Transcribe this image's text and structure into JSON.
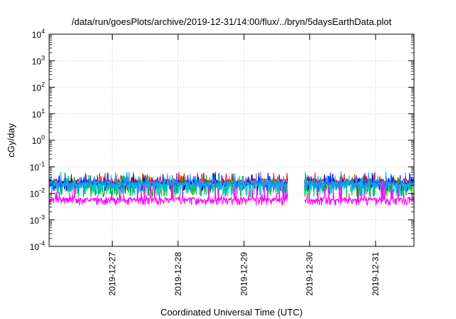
{
  "chart_data": {
    "type": "line",
    "title": "/data/run/goesPlots/archive/2019-12-31/14:00/flux/../bryn/5daysEarthData.plot",
    "xlabel": "Coordinated Universal Time (UTC)",
    "ylabel": "cGy/day",
    "y_scale": "log",
    "ylim": [
      0.0001,
      10000
    ],
    "y_ticks": [
      {
        "value": 0.0001,
        "base": "10",
        "exp": "-4"
      },
      {
        "value": 0.001,
        "base": "10",
        "exp": "-3"
      },
      {
        "value": 0.01,
        "base": "10",
        "exp": "-2"
      },
      {
        "value": 0.1,
        "base": "10",
        "exp": "-1"
      },
      {
        "value": 1,
        "base": "10",
        "exp": "0"
      },
      {
        "value": 10,
        "base": "10",
        "exp": "1"
      },
      {
        "value": 100,
        "base": "10",
        "exp": "2"
      },
      {
        "value": 1000,
        "base": "10",
        "exp": "3"
      },
      {
        "value": 10000,
        "base": "10",
        "exp": "4"
      }
    ],
    "xlim": [
      "2019-12-26T01:00",
      "2019-12-31T14:00"
    ],
    "x_ticks": [
      {
        "value": "2019-12-27T00:00",
        "label": "2019-12-27"
      },
      {
        "value": "2019-12-28T00:00",
        "label": "2019-12-28"
      },
      {
        "value": "2019-12-29T00:00",
        "label": "2019-12-29"
      },
      {
        "value": "2019-12-30T00:00",
        "label": "2019-12-30"
      },
      {
        "value": "2019-12-31T00:00",
        "label": "2019-12-31"
      }
    ],
    "grid": true,
    "data_gap": [
      "2019-12-29T16:00",
      "2019-12-29T22:00"
    ],
    "series": [
      {
        "color": "#ff0000",
        "base": 0.03,
        "low": 0.022,
        "high": 0.065
      },
      {
        "color": "#00b000",
        "base": 0.024,
        "low": 0.007,
        "high": 0.05
      },
      {
        "color": "#0000ff",
        "base": 0.025,
        "low": 0.012,
        "high": 0.06
      },
      {
        "color": "#00c8c8",
        "base": 0.022,
        "low": 0.008,
        "high": 0.05
      },
      {
        "color": "#1e90ff",
        "base": 0.026,
        "low": 0.015,
        "high": 0.065
      },
      {
        "color": "#ff00ff",
        "base": 0.006,
        "low": 0.0035,
        "high": 0.025
      }
    ]
  }
}
